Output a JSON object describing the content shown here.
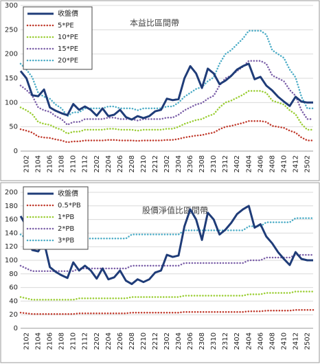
{
  "chart_data": [
    {
      "type": "line",
      "title": "本益比區間帶",
      "categories": [
        null,
        "2102",
        null,
        "2104",
        null,
        "2106",
        null,
        "2108",
        null,
        "2110",
        null,
        "2112",
        null,
        "2202",
        null,
        "2204",
        null,
        "2206",
        null,
        "2208",
        null,
        "2210",
        null,
        "2212",
        null,
        "2302",
        null,
        "2304",
        null,
        "2306",
        null,
        "2308",
        null,
        "2310",
        null,
        "2312",
        null,
        "2402",
        null,
        "2404",
        null,
        "2406",
        null,
        "2408",
        null,
        "2410",
        null,
        "2412",
        null,
        "2502",
        null
      ],
      "ylim": [
        0,
        300
      ],
      "yticks": [
        0,
        50,
        100,
        150,
        200,
        250,
        300
      ],
      "grid": true,
      "legend": "top-left",
      "series": [
        {
          "name": "收盤價",
          "color": "#1f3c78",
          "values": [
            165,
            150,
            115,
            113,
            127,
            90,
            83,
            78,
            74,
            97,
            85,
            92,
            85,
            73,
            88,
            72,
            75,
            85,
            70,
            65,
            72,
            68,
            72,
            82,
            85,
            108,
            105,
            107,
            150,
            175,
            160,
            130,
            170,
            160,
            138,
            145,
            155,
            168,
            175,
            180,
            148,
            153,
            135,
            125,
            112,
            102,
            93,
            112,
            102,
            100,
            100
          ]
        },
        {
          "name": "5*PE",
          "color": "#c0392b",
          "values": [
            45,
            42,
            38,
            30,
            28,
            27,
            24,
            22,
            18,
            20,
            20,
            22,
            22,
            22,
            22,
            23,
            23,
            22,
            22,
            22,
            21,
            22,
            22,
            22,
            22,
            23,
            23,
            25,
            28,
            30,
            32,
            33,
            36,
            38,
            45,
            50,
            52,
            55,
            58,
            62,
            62,
            62,
            60,
            52,
            50,
            48,
            42,
            38,
            28,
            22,
            22
          ]
        },
        {
          "name": "10*PE",
          "color": "#9acd32",
          "values": [
            90,
            84,
            76,
            60,
            56,
            54,
            48,
            44,
            36,
            40,
            40,
            44,
            44,
            44,
            44,
            46,
            46,
            44,
            44,
            44,
            42,
            44,
            44,
            44,
            44,
            46,
            46,
            50,
            56,
            60,
            64,
            66,
            72,
            76,
            90,
            100,
            104,
            110,
            116,
            124,
            124,
            124,
            120,
            104,
            100,
            96,
            84,
            76,
            56,
            44,
            44
          ]
        },
        {
          "name": "15*PE",
          "color": "#7b5fa8",
          "values": [
            135,
            126,
            114,
            90,
            84,
            81,
            72,
            66,
            54,
            60,
            60,
            66,
            66,
            66,
            66,
            69,
            69,
            66,
            66,
            66,
            63,
            66,
            66,
            66,
            66,
            69,
            69,
            75,
            84,
            90,
            96,
            99,
            108,
            114,
            135,
            150,
            156,
            165,
            174,
            186,
            186,
            186,
            180,
            156,
            150,
            144,
            126,
            114,
            84,
            66,
            66
          ]
        },
        {
          "name": "20*PE",
          "color": "#4bacc6",
          "values": [
            180,
            168,
            152,
            120,
            112,
            108,
            96,
            88,
            72,
            80,
            80,
            88,
            88,
            88,
            88,
            92,
            92,
            88,
            88,
            88,
            84,
            88,
            88,
            88,
            88,
            92,
            92,
            100,
            112,
            120,
            128,
            132,
            144,
            152,
            180,
            200,
            208,
            220,
            232,
            248,
            248,
            248,
            240,
            208,
            200,
            192,
            168,
            152,
            112,
            88,
            88
          ]
        }
      ]
    },
    {
      "type": "line",
      "title": "股價淨值比區間帶",
      "categories": [
        null,
        "2102",
        null,
        "2104",
        null,
        "2106",
        null,
        "2108",
        null,
        "2110",
        null,
        "2112",
        null,
        "2202",
        null,
        "2204",
        null,
        "2206",
        null,
        "2208",
        null,
        "2210",
        null,
        "2212",
        null,
        "2302",
        null,
        "2304",
        null,
        "2306",
        null,
        "2308",
        null,
        "2310",
        null,
        "2312",
        null,
        "2402",
        null,
        "2404",
        null,
        "2406",
        null,
        "2408",
        null,
        "2410",
        null,
        "2412",
        null,
        "2502",
        null
      ],
      "ylim": [
        0,
        200
      ],
      "yticks": [
        0,
        20,
        40,
        60,
        80,
        100,
        120,
        140,
        160,
        180,
        200
      ],
      "grid": true,
      "legend": "top-left",
      "series": [
        {
          "name": "收盤價",
          "color": "#1f3c78",
          "values": [
            165,
            150,
            115,
            113,
            127,
            90,
            83,
            78,
            74,
            97,
            85,
            92,
            85,
            73,
            88,
            72,
            75,
            85,
            70,
            65,
            72,
            68,
            72,
            82,
            85,
            108,
            105,
            107,
            150,
            175,
            160,
            130,
            170,
            160,
            138,
            145,
            155,
            168,
            175,
            180,
            148,
            153,
            135,
            125,
            112,
            102,
            93,
            112,
            102,
            100,
            100
          ]
        },
        {
          "name": "0.5*PB",
          "color": "#c0392b",
          "values": [
            23,
            22,
            21,
            21,
            21,
            21,
            21,
            21,
            21,
            21,
            22,
            22,
            22,
            22,
            22,
            22,
            22,
            22,
            22,
            23,
            23,
            23,
            23,
            23,
            23,
            23,
            23,
            23,
            24,
            24,
            24,
            24,
            24,
            24,
            24,
            24,
            24,
            24,
            24,
            25,
            25,
            25,
            26,
            26,
            26,
            26,
            26,
            27,
            27,
            27,
            27
          ]
        },
        {
          "name": "1*PB",
          "color": "#9acd32",
          "values": [
            46,
            44,
            42,
            42,
            42,
            42,
            42,
            42,
            42,
            42,
            44,
            44,
            44,
            44,
            44,
            44,
            44,
            44,
            44,
            46,
            46,
            46,
            46,
            46,
            46,
            46,
            46,
            46,
            48,
            48,
            48,
            48,
            48,
            48,
            48,
            48,
            48,
            48,
            48,
            50,
            50,
            50,
            52,
            52,
            52,
            52,
            52,
            54,
            54,
            54,
            54
          ]
        },
        {
          "name": "2*PB",
          "color": "#7b5fa8",
          "values": [
            92,
            88,
            84,
            84,
            84,
            84,
            84,
            84,
            84,
            84,
            88,
            88,
            88,
            88,
            88,
            88,
            88,
            88,
            88,
            92,
            92,
            92,
            92,
            92,
            92,
            92,
            92,
            92,
            96,
            96,
            96,
            96,
            96,
            96,
            96,
            96,
            96,
            96,
            96,
            100,
            100,
            100,
            104,
            104,
            104,
            104,
            104,
            108,
            108,
            108,
            108
          ]
        },
        {
          "name": "3*PB",
          "color": "#4bacc6",
          "values": [
            138,
            132,
            126,
            126,
            126,
            126,
            126,
            126,
            126,
            126,
            132,
            132,
            132,
            132,
            132,
            132,
            132,
            132,
            132,
            138,
            138,
            138,
            138,
            138,
            138,
            138,
            138,
            138,
            144,
            144,
            144,
            144,
            144,
            144,
            144,
            144,
            144,
            144,
            144,
            150,
            150,
            150,
            156,
            156,
            156,
            156,
            156,
            162,
            162,
            162,
            162
          ]
        }
      ]
    }
  ]
}
